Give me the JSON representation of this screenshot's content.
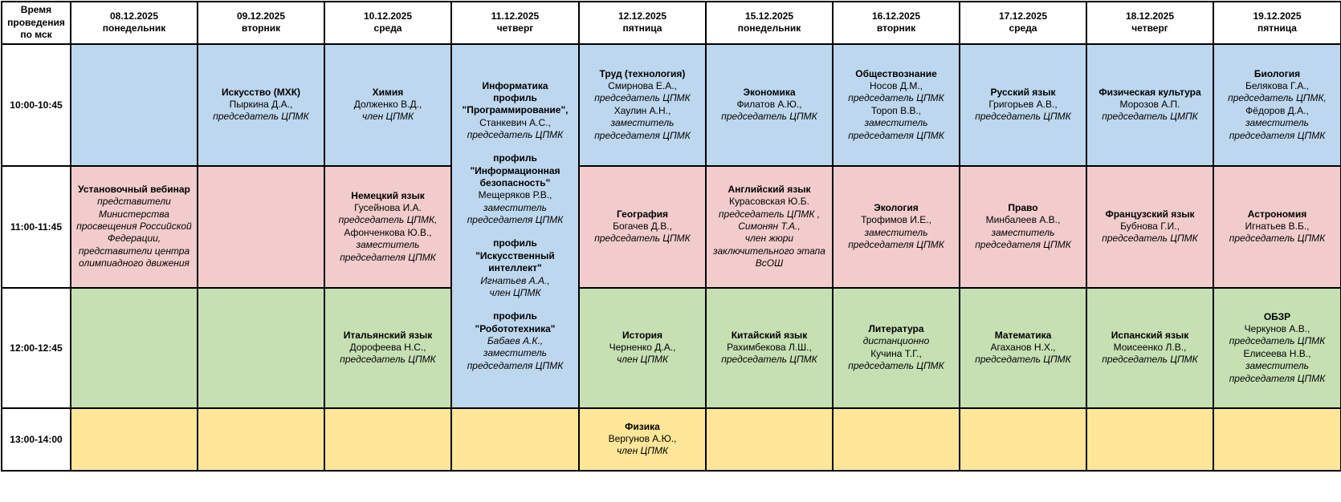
{
  "colors": {
    "blue": "#BDD7EE",
    "pink": "#F2CCCC",
    "green": "#C6E0B4",
    "yellow": "#FFE699",
    "white": "#FFFFFF",
    "border": "#000000"
  },
  "header": {
    "time_col": "Время проведения по мск",
    "days": [
      {
        "date": "08.12.2025",
        "weekday": "понедельник"
      },
      {
        "date": "09.12.2025",
        "weekday": "вторник"
      },
      {
        "date": "10.12.2025",
        "weekday": "среда"
      },
      {
        "date": "11.12.2025",
        "weekday": "четверг"
      },
      {
        "date": "12.12.2025",
        "weekday": "пятница"
      },
      {
        "date": "15.12.2025",
        "weekday": "понедельник"
      },
      {
        "date": "16.12.2025",
        "weekday": "вторник"
      },
      {
        "date": "17.12.2025",
        "weekday": "среда"
      },
      {
        "date": "18.12.2025",
        "weekday": "четверг"
      },
      {
        "date": "19.12.2025",
        "weekday": "пятница"
      }
    ]
  },
  "rows": [
    {
      "time": "10:00-10:45",
      "color": "blue",
      "cells": [
        {
          "lines": []
        },
        {
          "lines": [
            {
              "s": "b",
              "t": "Искусство (МХК)"
            },
            {
              "s": "n",
              "t": "Пыркина Д.А.,"
            },
            {
              "s": "i",
              "t": "председатель ЦПМК"
            }
          ]
        },
        {
          "lines": [
            {
              "s": "b",
              "t": "Химия"
            },
            {
              "s": "n",
              "t": "Долженко В.Д.,"
            },
            {
              "s": "i",
              "t": "член ЦПМК"
            }
          ]
        },
        {
          "rowspan": 3,
          "color": "blue",
          "lines": [
            {
              "s": "b",
              "t": "Информатика"
            },
            {
              "s": "b",
              "t": "профиль"
            },
            {
              "s": "b",
              "t": "\"Программирование\","
            },
            {
              "s": "n",
              "t": "Станкевич А.С.,"
            },
            {
              "s": "i",
              "t": "председатель ЦПМК"
            },
            {
              "s": "sp",
              "t": ""
            },
            {
              "s": "b",
              "t": "профиль"
            },
            {
              "s": "b",
              "t": "\"Информационная безопасность\""
            },
            {
              "s": "n",
              "t": "Мещеряков Р.В.,"
            },
            {
              "s": "i",
              "t": "заместитель председателя ЦПМК"
            },
            {
              "s": "sp",
              "t": ""
            },
            {
              "s": "b",
              "t": "профиль"
            },
            {
              "s": "b",
              "t": "\"Искусственный интеллект\""
            },
            {
              "s": "i",
              "t": "Игнатьев А.А.,"
            },
            {
              "s": "i",
              "t": "член ЦПМК"
            },
            {
              "s": "sp",
              "t": ""
            },
            {
              "s": "b",
              "t": "профиль"
            },
            {
              "s": "b",
              "t": "\"Робототехника\""
            },
            {
              "s": "i",
              "t": "Бабаев А.К.,"
            },
            {
              "s": "i",
              "t": "заместитель председателя ЦПМК"
            }
          ]
        },
        {
          "lines": [
            {
              "s": "b",
              "t": "Труд (технология)"
            },
            {
              "s": "n",
              "t": "Смирнова Е.А.,"
            },
            {
              "s": "i",
              "t": "председатель ЦПМК"
            },
            {
              "s": "n",
              "t": "Хаулин А.Н.,"
            },
            {
              "s": "i",
              "t": "заместитель председателя ЦПМК"
            }
          ]
        },
        {
          "lines": [
            {
              "s": "b",
              "t": "Экономика"
            },
            {
              "s": "n",
              "t": "Филатов А.Ю.,"
            },
            {
              "s": "i",
              "t": "председатель ЦПМК"
            }
          ]
        },
        {
          "lines": [
            {
              "s": "b",
              "t": "Обществознание"
            },
            {
              "s": "n",
              "t": "Носов Д.М.,"
            },
            {
              "s": "i",
              "t": "председатель ЦПМК"
            },
            {
              "s": "n",
              "t": "Тороп В.В.,"
            },
            {
              "s": "i",
              "t": "заместитель председателя ЦПМК"
            }
          ]
        },
        {
          "lines": [
            {
              "s": "b",
              "t": "Русский язык"
            },
            {
              "s": "n",
              "t": "Григорьев А.В.,"
            },
            {
              "s": "i",
              "t": "председатель ЦПМК"
            }
          ]
        },
        {
          "lines": [
            {
              "s": "b",
              "t": "Физическая культура"
            },
            {
              "s": "n",
              "t": "Морозов А.П."
            },
            {
              "s": "i",
              "t": "председатель ЦМПК"
            }
          ]
        },
        {
          "lines": [
            {
              "s": "b",
              "t": "Биология"
            },
            {
              "s": "n",
              "t": "Белякова Г.А.,"
            },
            {
              "s": "i",
              "t": "председатель ЦПМК,"
            },
            {
              "s": "n",
              "t": "Фёдоров Д.А.,"
            },
            {
              "s": "i",
              "t": "заместитель председателя ЦПМК"
            }
          ]
        }
      ]
    },
    {
      "time": "11:00-11:45",
      "color": "pink",
      "cells": [
        {
          "lines": [
            {
              "s": "b",
              "t": "Установочный вебинар"
            },
            {
              "s": "i",
              "t": "представители Министерства просвещения Российской Федерации, представители центра олимпиадного движения"
            }
          ]
        },
        {
          "lines": []
        },
        {
          "lines": [
            {
              "s": "b",
              "t": "Немецкий язык"
            },
            {
              "s": "n",
              "t": "Гусейнова И.А."
            },
            {
              "s": "i",
              "t": "председатель ЦПМК,"
            },
            {
              "s": "n",
              "t": "Афонченкова Ю.В.,"
            },
            {
              "s": "i",
              "t": "заместитель председателя ЦПМК"
            }
          ]
        },
        {
          "covered": true
        },
        {
          "lines": [
            {
              "s": "b",
              "t": "География"
            },
            {
              "s": "n",
              "t": "Богачев Д.В.,"
            },
            {
              "s": "i",
              "t": "председатель ЦПМК"
            }
          ]
        },
        {
          "lines": [
            {
              "s": "b",
              "t": "Английский язык"
            },
            {
              "s": "n",
              "t": "Курасовская Ю.Б."
            },
            {
              "s": "i",
              "t": "председатель ЦПМК , Симонян Т.А.,"
            },
            {
              "s": "i",
              "t": "член жюри заключительного этапа ВсОШ"
            }
          ]
        },
        {
          "lines": [
            {
              "s": "b",
              "t": "Экология"
            },
            {
              "s": "n",
              "t": "Трофимов И.Е.,"
            },
            {
              "s": "i",
              "t": "заместитель председателя ЦПМК"
            }
          ]
        },
        {
          "lines": [
            {
              "s": "b",
              "t": "Право"
            },
            {
              "s": "n",
              "t": "Минбалеев А.В.,"
            },
            {
              "s": "i",
              "t": "заместитель председателя ЦПМК"
            }
          ]
        },
        {
          "lines": [
            {
              "s": "b",
              "t": "Французский язык"
            },
            {
              "s": "n",
              "t": "Бубнова Г.И.,"
            },
            {
              "s": "i",
              "t": "председатель ЦПМК"
            }
          ]
        },
        {
          "lines": [
            {
              "s": "b",
              "t": "Астрономия"
            },
            {
              "s": "n",
              "t": "Игнатьев В.Б.,"
            },
            {
              "s": "i",
              "t": "председатель ЦПМК"
            }
          ]
        }
      ]
    },
    {
      "time": "12:00-12:45",
      "color": "green",
      "cells": [
        {
          "lines": []
        },
        {
          "lines": []
        },
        {
          "lines": [
            {
              "s": "b",
              "t": "Итальянский язык"
            },
            {
              "s": "n",
              "t": "Дорофеева Н.С.,"
            },
            {
              "s": "i",
              "t": "председатель ЦПМК"
            }
          ]
        },
        {
          "covered": true
        },
        {
          "lines": [
            {
              "s": "b",
              "t": "История"
            },
            {
              "s": "n",
              "t": "Черненко Д.А.,"
            },
            {
              "s": "i",
              "t": "член ЦПМК"
            }
          ]
        },
        {
          "lines": [
            {
              "s": "b",
              "t": "Китайский язык"
            },
            {
              "s": "n",
              "t": "Рахимбекова Л.Ш.,"
            },
            {
              "s": "i",
              "t": "председатель ЦПМК"
            }
          ]
        },
        {
          "lines": [
            {
              "s": "b",
              "t": "Литература"
            },
            {
              "s": "i",
              "t": "дистанционно"
            },
            {
              "s": "n",
              "t": "Кучина Т.Г.,"
            },
            {
              "s": "i",
              "t": "председатель ЦПМК"
            }
          ]
        },
        {
          "lines": [
            {
              "s": "b",
              "t": "Математика"
            },
            {
              "s": "n",
              "t": "Агаханов Н.Х.,"
            },
            {
              "s": "i",
              "t": "председатель ЦПМК"
            }
          ]
        },
        {
          "lines": [
            {
              "s": "b",
              "t": "Испанский язык"
            },
            {
              "s": "n",
              "t": "Моисеенко Л.В.,"
            },
            {
              "s": "i",
              "t": "председатель ЦПМК"
            }
          ]
        },
        {
          "lines": [
            {
              "s": "b",
              "t": "ОБЗР"
            },
            {
              "s": "n",
              "t": "Черкунов А.В.,"
            },
            {
              "s": "i",
              "t": "председатель ЦПМК"
            },
            {
              "s": "n",
              "t": "Елисеева Н.В.,"
            },
            {
              "s": "i",
              "t": "заместитель председателя ЦПМК"
            }
          ]
        }
      ]
    },
    {
      "time": "13:00-14:00",
      "color": "yellow",
      "cells": [
        {
          "lines": []
        },
        {
          "lines": []
        },
        {
          "lines": []
        },
        {
          "lines": []
        },
        {
          "lines": [
            {
              "s": "b",
              "t": "Физика"
            },
            {
              "s": "n",
              "t": "Вергунов А.Ю.,"
            },
            {
              "s": "i",
              "t": "член ЦПМК"
            }
          ]
        },
        {
          "lines": []
        },
        {
          "lines": []
        },
        {
          "lines": []
        },
        {
          "lines": []
        },
        {
          "lines": []
        }
      ]
    }
  ]
}
